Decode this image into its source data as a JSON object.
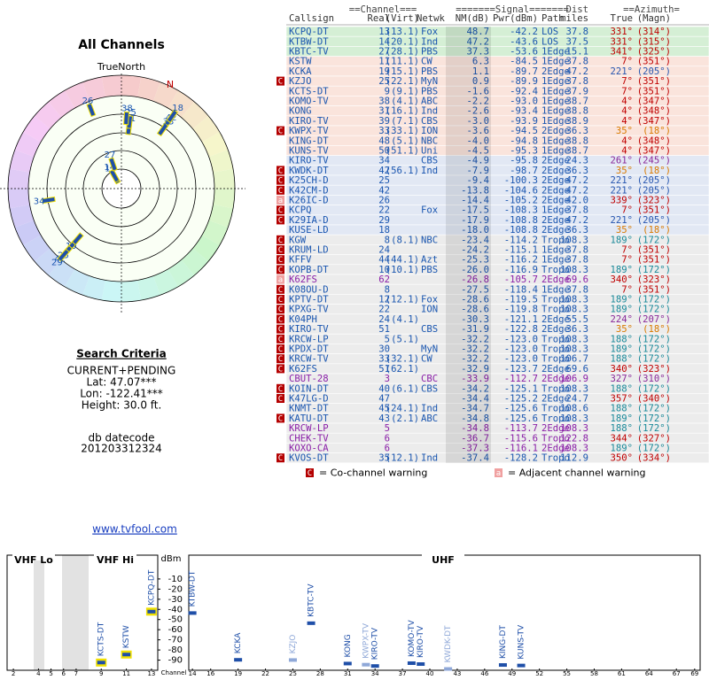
{
  "radar": {
    "title": "All Channels",
    "north_label": "TrueNorth",
    "n_label": "N",
    "rlim": [
      60,
      -40
    ],
    "points": [
      {
        "label": "13",
        "azimuth": 331,
        "nm": 48.7
      },
      {
        "label": "14",
        "azimuth": 331,
        "nm": 47.2
      },
      {
        "label": "27",
        "azimuth": 341,
        "nm": 37.3
      },
      {
        "label": "11",
        "azimuth": 7,
        "nm": 6.3
      },
      {
        "label": "25",
        "azimuth": 7,
        "nm": 0.9
      },
      {
        "label": "38",
        "azimuth": 4,
        "nm": -2.2
      },
      {
        "label": "42",
        "azimuth": 35,
        "nm": -7.9
      },
      {
        "label": "33",
        "azimuth": 35,
        "nm": -3.6
      },
      {
        "label": "18",
        "azimuth": 35,
        "nm": -18
      },
      {
        "label": "26",
        "azimuth": 339,
        "nm": -14.4
      },
      {
        "label": "34",
        "azimuth": 261,
        "nm": -4.9
      },
      {
        "label": "19",
        "azimuth": 221,
        "nm": 1.1
      },
      {
        "label": "25",
        "azimuth": 221,
        "nm": -9.4
      },
      {
        "label": "42",
        "azimuth": 221,
        "nm": -13.8
      },
      {
        "label": "29",
        "azimuth": 221,
        "nm": -17.9
      }
    ]
  },
  "search": {
    "title": "Search Criteria",
    "mode": "CURRENT+PENDING",
    "lat": "Lat: 47.07***",
    "lon": "Lon: -122.41***",
    "height": "Height: 30.0 ft.",
    "db_label": "db datecode",
    "db_code": "201203312324"
  },
  "site": {
    "link": "www.tvfool.com"
  },
  "table": {
    "group_headers": [
      "==Channel===",
      "=======Signal=======",
      "Dist",
      "==Azimuth="
    ],
    "headers": [
      "Callsign",
      "Real",
      "(Virt)",
      "Netwk",
      "NM(dB)",
      "Pwr(dBm)",
      "Path",
      "miles",
      "True",
      "(Magn)"
    ],
    "warn_colors": {
      "C": "#b40000",
      "a": "#f0a0a0"
    },
    "rows": [
      {
        "cs": "KCPQ-DT",
        "real": "13",
        "virt": "(13.1)",
        "net": "Fox",
        "nm": "48.7",
        "pwr": "-42.2",
        "path": "LOS",
        "dist": "37.8",
        "az": "331°",
        "magn": "(314°)",
        "bg": "#d5efd5",
        "azc": "#c00000"
      },
      {
        "cs": "KTBW-DT",
        "real": "14",
        "virt": "(20.1)",
        "net": "Ind",
        "nm": "47.2",
        "pwr": "-43.6",
        "path": "LOS",
        "dist": "37.5",
        "az": "331°",
        "magn": "(315°)",
        "bg": "#d5efd5",
        "azc": "#c00000"
      },
      {
        "cs": "KBTC-TV",
        "real": "27",
        "virt": "(28.1)",
        "net": "PBS",
        "nm": "37.3",
        "pwr": "-53.6",
        "path": "1Edge",
        "dist": "15.1",
        "az": "341°",
        "magn": "(325°)",
        "bg": "#d5efd5",
        "azc": "#c00000"
      },
      {
        "cs": "KSTW",
        "real": "11",
        "virt": "(11.1)",
        "net": "CW",
        "nm": "6.3",
        "pwr": "-84.5",
        "path": "1Edge",
        "dist": "37.8",
        "az": "7°",
        "magn": "(351°)",
        "bg": "#fae4dc",
        "azc": "#c00000"
      },
      {
        "cs": "KCKA",
        "real": "19",
        "virt": "(15.1)",
        "net": "PBS",
        "nm": "1.1",
        "pwr": "-89.7",
        "path": "2Edge",
        "dist": "47.2",
        "az": "221°",
        "magn": "(205°)",
        "bg": "#fae4dc",
        "azc": "#2857b0"
      },
      {
        "w": "C",
        "cs": "KZJO",
        "real": "25",
        "virt": "(22.1)",
        "net": "MyN",
        "nm": "0.9",
        "pwr": "-89.9",
        "path": "1Edge",
        "dist": "37.8",
        "az": "7°",
        "magn": "(351°)",
        "bg": "#fae4dc",
        "azc": "#c00000"
      },
      {
        "cs": "KCTS-DT",
        "real": "9",
        "virt": "(9.1)",
        "net": "PBS",
        "nm": "-1.6",
        "pwr": "-92.4",
        "path": "1Edge",
        "dist": "37.9",
        "az": "7°",
        "magn": "(351°)",
        "bg": "#fae4dc",
        "azc": "#c00000"
      },
      {
        "cs": "KOMO-TV",
        "real": "38",
        "virt": "(4.1)",
        "net": "ABC",
        "nm": "-2.2",
        "pwr": "-93.0",
        "path": "1Edge",
        "dist": "38.7",
        "az": "4°",
        "magn": "(347°)",
        "bg": "#fae4dc",
        "azc": "#c00000"
      },
      {
        "cs": "KONG",
        "real": "31",
        "virt": "(16.1)",
        "net": "Ind",
        "nm": "-2.6",
        "pwr": "-93.4",
        "path": "1Edge",
        "dist": "38.8",
        "az": "4°",
        "magn": "(348°)",
        "bg": "#fae4dc",
        "azc": "#c00000"
      },
      {
        "cs": "KIRO-TV",
        "real": "39",
        "virt": "(7.1)",
        "net": "CBS",
        "nm": "-3.0",
        "pwr": "-93.9",
        "path": "1Edge",
        "dist": "38.9",
        "az": "4°",
        "magn": "(347°)",
        "bg": "#fae4dc",
        "azc": "#c00000"
      },
      {
        "w": "C",
        "cs": "KWPX-TV",
        "real": "33",
        "virt": "(33.1)",
        "net": "ION",
        "nm": "-3.6",
        "pwr": "-94.5",
        "path": "2Edge",
        "dist": "36.3",
        "az": "35°",
        "magn": "(18°)",
        "bg": "#fae4dc",
        "azc": "#d97a00"
      },
      {
        "cs": "KING-DT",
        "real": "48",
        "virt": "(5.1)",
        "net": "NBC",
        "nm": "-4.0",
        "pwr": "-94.8",
        "path": "1Edge",
        "dist": "38.8",
        "az": "4°",
        "magn": "(348°)",
        "bg": "#fae4dc",
        "azc": "#c00000"
      },
      {
        "cs": "KUNS-TV",
        "real": "50",
        "virt": "(51.1)",
        "net": "Uni",
        "nm": "-4.5",
        "pwr": "-95.3",
        "path": "1Edge",
        "dist": "38.7",
        "az": "4°",
        "magn": "(347°)",
        "bg": "#fae4dc",
        "azc": "#c00000"
      },
      {
        "cs": "KIRO-TV",
        "real": "34",
        "net": "CBS",
        "nm": "-4.9",
        "pwr": "-95.8",
        "path": "2Edge",
        "dist": "24.3",
        "az": "261°",
        "magn": "(245°)",
        "bg": "#e2e8f4",
        "azc": "#8a2a9a"
      },
      {
        "w": "C",
        "cs": "KWDK-DT",
        "real": "42",
        "virt": "(56.1)",
        "net": "Ind",
        "nm": "-7.9",
        "pwr": "-98.7",
        "path": "2Edge",
        "dist": "36.3",
        "az": "35°",
        "magn": "(18°)",
        "bg": "#e2e8f4",
        "azc": "#d97a00"
      },
      {
        "w": "C",
        "cs": "K25CH-D",
        "real": "25",
        "nm": "-9.4",
        "pwr": "-100.3",
        "path": "2Edge",
        "dist": "47.2",
        "az": "221°",
        "magn": "(205°)",
        "bg": "#e2e8f4",
        "azc": "#2857b0"
      },
      {
        "w": "C",
        "cs": "K42CM-D",
        "real": "42",
        "nm": "-13.8",
        "pwr": "-104.6",
        "path": "2Edge",
        "dist": "47.2",
        "az": "221°",
        "magn": "(205°)",
        "bg": "#e2e8f4",
        "azc": "#2857b0"
      },
      {
        "w": "a",
        "cs": "K26IC-D",
        "real": "26",
        "nm": "-14.4",
        "pwr": "-105.2",
        "path": "2Edge",
        "dist": "42.0",
        "az": "339°",
        "magn": "(323°)",
        "bg": "#e2e8f4",
        "azc": "#c00000"
      },
      {
        "w": "C",
        "cs": "KCPQ",
        "real": "22",
        "net": "Fox",
        "nm": "-17.5",
        "pwr": "-108.3",
        "path": "1Edge",
        "dist": "37.8",
        "az": "7°",
        "magn": "(351°)",
        "bg": "#e2e8f4",
        "azc": "#c00000"
      },
      {
        "w": "C",
        "cs": "K29IA-D",
        "real": "29",
        "nm": "-17.9",
        "pwr": "-108.8",
        "path": "2Edge",
        "dist": "47.2",
        "az": "221°",
        "magn": "(205°)",
        "bg": "#e2e8f4",
        "azc": "#2857b0"
      },
      {
        "cs": "KUSE-LD",
        "real": "18",
        "nm": "-18.0",
        "pwr": "-108.8",
        "path": "2Edge",
        "dist": "36.3",
        "az": "35°",
        "magn": "(18°)",
        "bg": "#e2e8f4",
        "azc": "#d97a00"
      },
      {
        "w": "C",
        "cs": "KGW",
        "real": "8",
        "virt": "(8.1)",
        "net": "NBC",
        "nm": "-23.4",
        "pwr": "-114.2",
        "path": "Tropo",
        "dist": "108.3",
        "az": "189°",
        "magn": "(172°)",
        "bg": "#ececec",
        "azc": "#1a8a9a"
      },
      {
        "w": "C",
        "cs": "KRUM-LD",
        "real": "24",
        "nm": "-24.2",
        "pwr": "-115.1",
        "path": "1Edge",
        "dist": "37.8",
        "az": "7°",
        "magn": "(351°)",
        "bg": "#ececec",
        "azc": "#c00000"
      },
      {
        "w": "C",
        "cs": "KFFV",
        "real": "44",
        "virt": "(44.1)",
        "net": "Azt",
        "nm": "-25.3",
        "pwr": "-116.2",
        "path": "1Edge",
        "dist": "37.8",
        "az": "7°",
        "magn": "(351°)",
        "bg": "#ececec",
        "azc": "#c00000"
      },
      {
        "w": "C",
        "cs": "KOPB-DT",
        "real": "10",
        "virt": "(10.1)",
        "net": "PBS",
        "nm": "-26.0",
        "pwr": "-116.9",
        "path": "Tropo",
        "dist": "108.3",
        "az": "189°",
        "magn": "(172°)",
        "bg": "#ececec",
        "azc": "#1a8a9a"
      },
      {
        "w": "a",
        "cs": "K62FS",
        "real": "62",
        "nm": "-26.8",
        "pwr": "-105.7",
        "path": "2Edge",
        "dist": "69.6",
        "az": "340°",
        "magn": "(323°)",
        "bg": "#ececec",
        "azc": "#c00000",
        "csc": "#8a1fa8"
      },
      {
        "w": "C",
        "cs": "K08OU-D",
        "real": "8",
        "nm": "-27.5",
        "pwr": "-118.4",
        "path": "1Edge",
        "dist": "37.8",
        "az": "7°",
        "magn": "(351°)",
        "bg": "#ececec",
        "azc": "#c00000"
      },
      {
        "w": "C",
        "cs": "KPTV-DT",
        "real": "12",
        "virt": "(12.1)",
        "net": "Fox",
        "nm": "-28.6",
        "pwr": "-119.5",
        "path": "Tropo",
        "dist": "108.3",
        "az": "189°",
        "magn": "(172°)",
        "bg": "#ececec",
        "azc": "#1a8a9a"
      },
      {
        "w": "C",
        "cs": "KPXG-TV",
        "real": "22",
        "net": "ION",
        "nm": "-28.6",
        "pwr": "-119.8",
        "path": "Tropo",
        "dist": "108.3",
        "az": "189°",
        "magn": "(172°)",
        "bg": "#ececec",
        "azc": "#1a8a9a"
      },
      {
        "w": "C",
        "cs": "K04PH",
        "real": "24",
        "virt": "(4.1)",
        "nm": "-30.3",
        "pwr": "-121.1",
        "path": "2Edge",
        "dist": "55.5",
        "az": "224°",
        "magn": "(207°)",
        "bg": "#ececec",
        "azc": "#8a2a9a"
      },
      {
        "w": "C",
        "cs": "KIRO-TV",
        "real": "51",
        "net": "CBS",
        "nm": "-31.9",
        "pwr": "-122.8",
        "path": "2Edge",
        "dist": "36.3",
        "az": "35°",
        "magn": "(18°)",
        "bg": "#ececec",
        "azc": "#d97a00"
      },
      {
        "w": "C",
        "cs": "KRCW-LP",
        "real": "5",
        "virt": "(5.1)",
        "nm": "-32.2",
        "pwr": "-123.0",
        "path": "Tropo",
        "dist": "108.3",
        "az": "188°",
        "magn": "(172°)",
        "bg": "#ececec",
        "azc": "#1a8a9a"
      },
      {
        "w": "C",
        "cs": "KPDX-DT",
        "real": "30",
        "net": "MyN",
        "nm": "-32.2",
        "pwr": "-123.0",
        "path": "Tropo",
        "dist": "108.3",
        "az": "189°",
        "magn": "(172°)",
        "bg": "#ececec",
        "azc": "#1a8a9a"
      },
      {
        "w": "C",
        "cs": "KRCW-TV",
        "real": "33",
        "virt": "(32.1)",
        "net": "CW",
        "nm": "-32.2",
        "pwr": "-123.0",
        "path": "Tropo",
        "dist": "106.7",
        "az": "188°",
        "magn": "(172°)",
        "bg": "#ececec",
        "azc": "#1a8a9a"
      },
      {
        "w": "C",
        "cs": "K62FS",
        "real": "51",
        "virt": "(62.1)",
        "nm": "-32.9",
        "pwr": "-123.7",
        "path": "2Edge",
        "dist": "69.6",
        "az": "340°",
        "magn": "(323°)",
        "bg": "#ececec",
        "azc": "#c00000"
      },
      {
        "cs": "CBUT-28",
        "real": "3",
        "net": "CBC",
        "nm": "-33.9",
        "pwr": "-112.7",
        "path": "2Edge",
        "dist": "106.9",
        "az": "327°",
        "magn": "(310°)",
        "bg": "#ececec",
        "azc": "#8a2a9a",
        "csc": "#8a1fa8"
      },
      {
        "w": "C",
        "cs": "KOIN-DT",
        "real": "40",
        "virt": "(6.1)",
        "net": "CBS",
        "nm": "-34.2",
        "pwr": "-125.1",
        "path": "Tropo",
        "dist": "108.3",
        "az": "188°",
        "magn": "(172°)",
        "bg": "#ececec",
        "azc": "#1a8a9a"
      },
      {
        "w": "C",
        "cs": "K47LG-D",
        "real": "47",
        "nm": "-34.4",
        "pwr": "-125.2",
        "path": "2Edge",
        "dist": "24.7",
        "az": "357°",
        "magn": "(340°)",
        "bg": "#ececec",
        "azc": "#c00000"
      },
      {
        "cs": "KNMT-DT",
        "real": "45",
        "virt": "(24.1)",
        "net": "Ind",
        "nm": "-34.7",
        "pwr": "-125.6",
        "path": "Tropo",
        "dist": "108.6",
        "az": "188°",
        "magn": "(172°)",
        "bg": "#ececec",
        "azc": "#1a8a9a"
      },
      {
        "w": "C",
        "cs": "KATU-DT",
        "real": "43",
        "virt": "(2.1)",
        "net": "ABC",
        "nm": "-34.8",
        "pwr": "-125.6",
        "path": "Tropo",
        "dist": "108.3",
        "az": "189°",
        "magn": "(172°)",
        "bg": "#ececec",
        "azc": "#1a8a9a"
      },
      {
        "cs": "KRCW-LP",
        "real": "5",
        "nm": "-34.8",
        "pwr": "-113.7",
        "path": "2Edge",
        "dist": "108.3",
        "az": "188°",
        "magn": "(172°)",
        "bg": "#ececec",
        "azc": "#1a8a9a",
        "csc": "#8a1fa8"
      },
      {
        "cs": "CHEK-TV",
        "real": "6",
        "nm": "-36.7",
        "pwr": "-115.6",
        "path": "Tropo",
        "dist": "122.8",
        "az": "344°",
        "magn": "(327°)",
        "bg": "#ececec",
        "azc": "#c00000",
        "csc": "#8a1fa8"
      },
      {
        "cs": "KOXO-CA",
        "real": "6",
        "nm": "-37.3",
        "pwr": "-116.1",
        "path": "2Edge",
        "dist": "108.3",
        "az": "189°",
        "magn": "(172°)",
        "bg": "#ececec",
        "azc": "#1a8a9a",
        "csc": "#8a1fa8"
      },
      {
        "w": "C",
        "cs": "KVOS-DT",
        "real": "35",
        "virt": "(12.1)",
        "net": "Ind",
        "nm": "-37.4",
        "pwr": "-128.2",
        "path": "Tropo",
        "dist": "112.9",
        "az": "350°",
        "magn": "(334°)",
        "bg": "#ececec",
        "azc": "#c00000"
      }
    ]
  },
  "legend": {
    "co": {
      "icon": "C",
      "text": "= Co-channel warning"
    },
    "adj": {
      "icon": "a",
      "text": "= Adjacent channel warning"
    }
  },
  "chart_data": {
    "type": "bar",
    "xlabel": "Channel",
    "ylabel": "dBm",
    "bands": [
      "VHF Lo",
      "VHF Hi",
      "UHF"
    ],
    "xlims": [
      [
        1.5,
        13.5
      ],
      [
        13.6,
        69.6
      ]
    ],
    "ylim": [
      -100,
      3
    ],
    "yticks": [
      -10,
      -20,
      -30,
      -40,
      -50,
      -60,
      -70,
      -80,
      -90
    ],
    "xticks": [
      2,
      4,
      5,
      6,
      7,
      9,
      11,
      13,
      14,
      16,
      19,
      22,
      25,
      28,
      31,
      34,
      37,
      40,
      43,
      46,
      49,
      52,
      55,
      58,
      61,
      64,
      67,
      69
    ],
    "x": [
      9,
      11,
      13,
      14,
      19,
      25,
      27,
      31,
      33,
      34,
      38,
      39,
      42,
      48,
      50
    ],
    "labels": [
      "KCTS-DT",
      "KSTW",
      "KCPQ-DT",
      "KTBW-DT",
      "KCKA",
      "KZJO",
      "KBTC-TV",
      "KONG",
      "KWPX-TV",
      "KIRO-TV",
      "KOMO-TV",
      "KIRO-TV",
      "KWDK-DT",
      "KING-DT",
      "KUNS-TV"
    ],
    "values": [
      -92.4,
      -84.5,
      -42.2,
      -43.6,
      -89.7,
      -89.9,
      -53.6,
      -93.4,
      -94.5,
      -95.8,
      -93.0,
      -93.9,
      -98.7,
      -94.8,
      -95.3
    ],
    "colors": [
      "#1f4fa8",
      "#1f4fa8",
      "#1f4fa8",
      "#1f4fa8",
      "#1f4fa8",
      "#8fa8d8",
      "#1f4fa8",
      "#1f4fa8",
      "#8fa8d8",
      "#1f4fa8",
      "#1f4fa8",
      "#1f4fa8",
      "#8fa8d8",
      "#1f4fa8",
      "#1f4fa8"
    ],
    "outlines": [
      "#f0e000",
      "#f0e000",
      "#f0e000",
      null,
      null,
      null,
      null,
      null,
      null,
      null,
      null,
      null,
      null,
      null,
      null
    ]
  }
}
